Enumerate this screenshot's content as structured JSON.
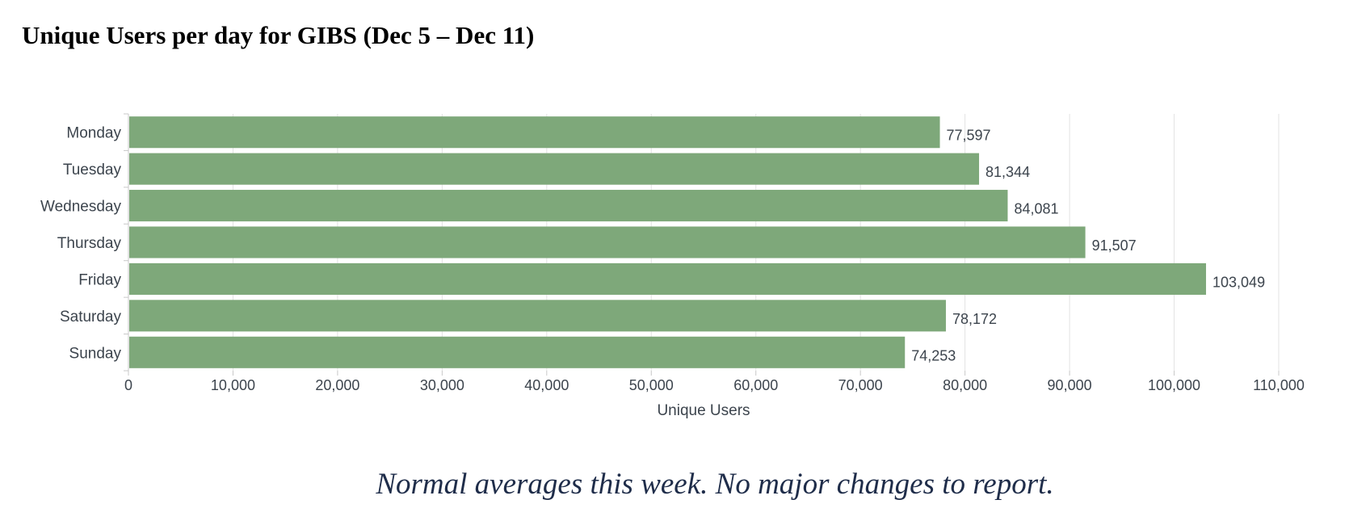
{
  "title": "Unique Users per day for GIBS (Dec 5 – Dec 11)",
  "comment": "Normal averages this week.  No major changes to report.",
  "chart_data": {
    "type": "bar",
    "orientation": "horizontal",
    "categories": [
      "Monday",
      "Tuesday",
      "Wednesday",
      "Thursday",
      "Friday",
      "Saturday",
      "Sunday"
    ],
    "values": [
      77597,
      81344,
      84081,
      91507,
      103049,
      78172,
      74253
    ],
    "value_labels": [
      "77,597",
      "81,344",
      "84,081",
      "91,507",
      "103,049",
      "78,172",
      "74,253"
    ],
    "xlabel": "Unique Users",
    "ylabel": "",
    "xlim": [
      0,
      110000
    ],
    "ticks": [
      0,
      10000,
      20000,
      30000,
      40000,
      50000,
      60000,
      70000,
      80000,
      90000,
      100000,
      110000
    ],
    "tick_labels": [
      "0",
      "10,000",
      "20,000",
      "30,000",
      "40,000",
      "50,000",
      "60,000",
      "70,000",
      "80,000",
      "90,000",
      "100,000",
      "110,000"
    ],
    "grid": true,
    "legend": "none",
    "bar_color": "#7ea87a",
    "grid_color": "#e3e3e3"
  }
}
